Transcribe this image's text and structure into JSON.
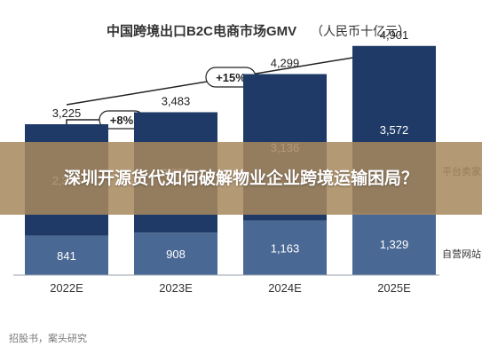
{
  "chart_data": {
    "type": "bar",
    "stacked": true,
    "title": "中国跨境出口B2C电商市场GMV",
    "unit": "（人民币十亿元）",
    "categories": [
      "2022E",
      "2023E",
      "2024E",
      "2025E"
    ],
    "series": [
      {
        "name": "自营网站",
        "values": [
          841,
          908,
          1163,
          1329
        ],
        "color": "#4a6894"
      },
      {
        "name": "平台卖家",
        "values": [
          2385,
          2575,
          3136,
          3572
        ],
        "color": "#1f3a66"
      }
    ],
    "totals": [
      3225,
      3483,
      4299,
      4901
    ],
    "growth_annotations": [
      {
        "from": "2022E",
        "to": "2023E",
        "label": "+8%"
      },
      {
        "from": "2022E",
        "to": "2025E",
        "label": "+15%"
      }
    ],
    "ylim": [
      0,
      5200
    ],
    "grid": false,
    "legend": "right"
  },
  "overlay": {
    "text": "深圳开源货代如何破解物业企业跨境运输困局？"
  },
  "source": "招股书，案头研究"
}
